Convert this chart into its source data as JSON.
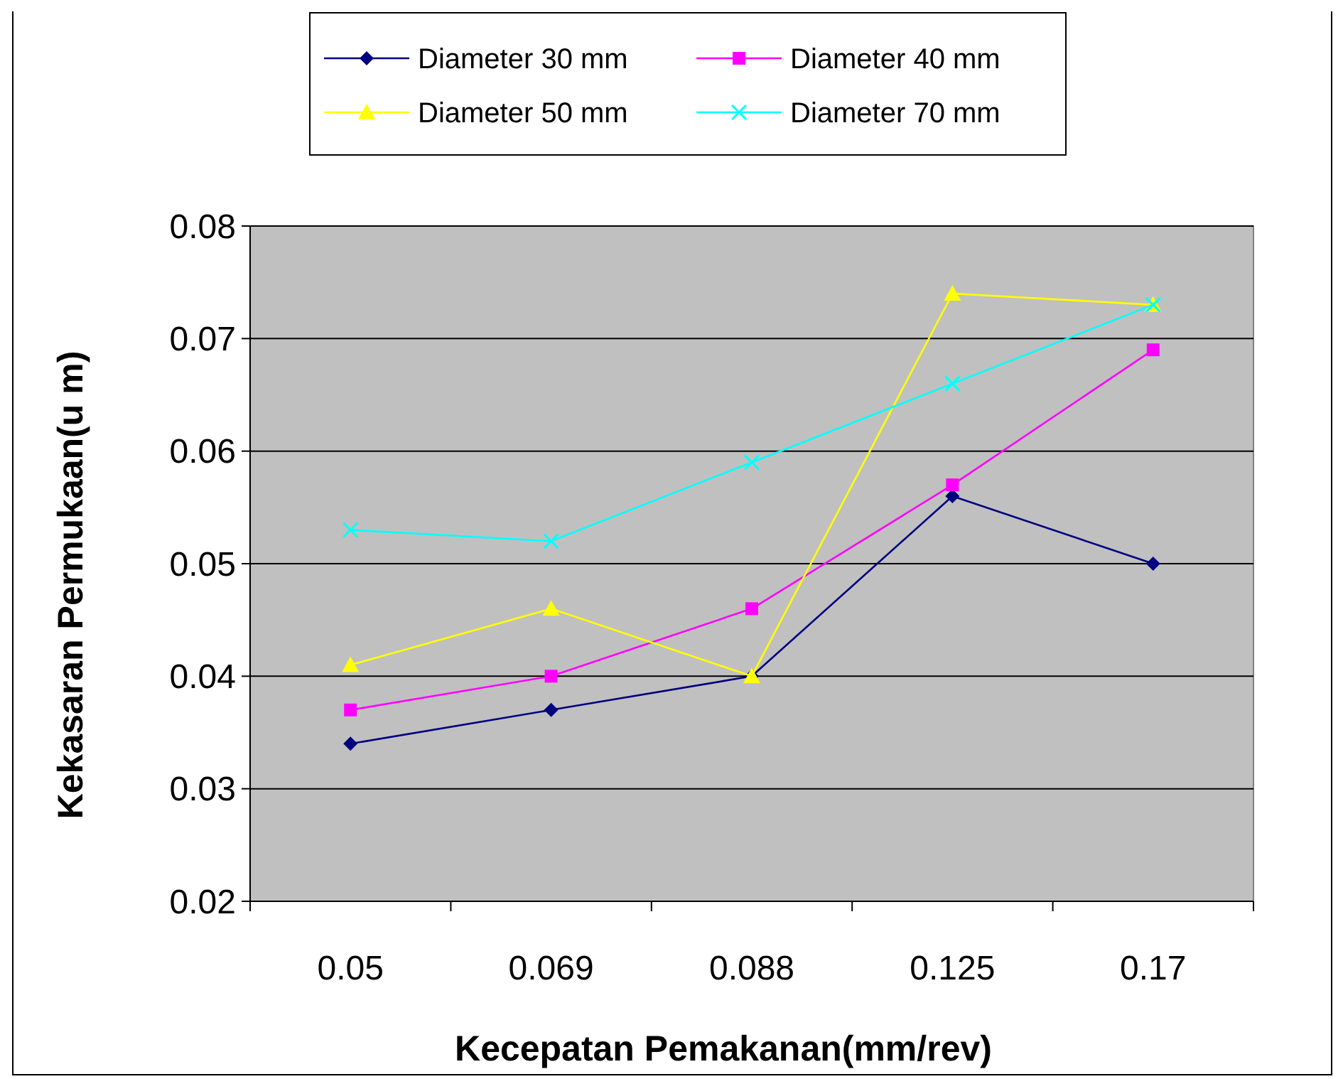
{
  "chart_data": {
    "type": "line",
    "xlabel": "Kecepatan Pemakanan(mm/rev)",
    "ylabel": "Kekasaran Permukaan(u m)",
    "categories": [
      "0.05",
      "0.069",
      "0.088",
      "0.125",
      "0.17"
    ],
    "ylim": [
      0.02,
      0.08
    ],
    "yticks": [
      0.02,
      0.03,
      0.04,
      0.05,
      0.06,
      0.07,
      0.08
    ],
    "grid": "y",
    "legend": "top",
    "series": [
      {
        "name": "Diameter 30 mm",
        "color": "#000080",
        "marker": "diamond",
        "values": [
          0.034,
          0.037,
          0.04,
          0.056,
          0.05
        ]
      },
      {
        "name": "Diameter 40 mm",
        "color": "#ff00ff",
        "marker": "square",
        "values": [
          0.037,
          0.04,
          0.046,
          0.057,
          0.069
        ]
      },
      {
        "name": "Diameter 50 mm",
        "color": "#ffff00",
        "marker": "triangle",
        "values": [
          0.041,
          0.046,
          0.04,
          0.074,
          0.073
        ]
      },
      {
        "name": "Diameter 70 mm",
        "color": "#00ffff",
        "marker": "cross",
        "values": [
          0.053,
          0.052,
          0.059,
          0.066,
          0.073
        ]
      }
    ]
  }
}
